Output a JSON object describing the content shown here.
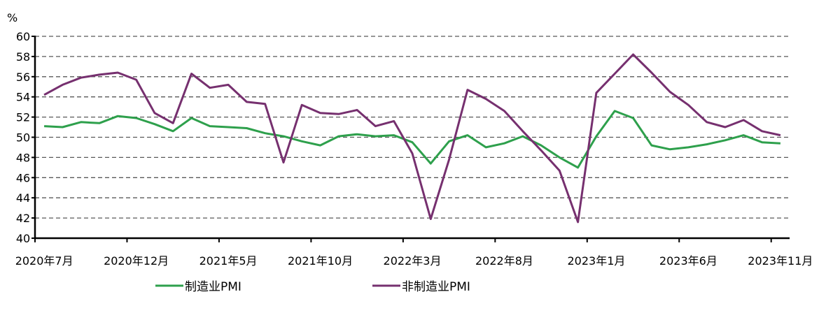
{
  "chart_data": {
    "type": "line",
    "title": "",
    "xlabel": "",
    "ylabel": "%",
    "ylim": [
      40,
      60
    ],
    "yticks": [
      40,
      42,
      44,
      46,
      48,
      50,
      52,
      54,
      56,
      58,
      60
    ],
    "grid": "horizontal dashed",
    "legend_position": "bottom",
    "x_tick_labels": [
      "2020年7月",
      "2020年12月",
      "2021年5月",
      "2021年10月",
      "2022年3月",
      "2022年8月",
      "2023年1月",
      "2023年6月",
      "2023年11月"
    ],
    "x": [
      "2020-07",
      "2020-08",
      "2020-09",
      "2020-10",
      "2020-11",
      "2020-12",
      "2021-01",
      "2021-02",
      "2021-03",
      "2021-04",
      "2021-05",
      "2021-06",
      "2021-07",
      "2021-08",
      "2021-09",
      "2021-10",
      "2021-11",
      "2021-12",
      "2022-01",
      "2022-02",
      "2022-03",
      "2022-04",
      "2022-05",
      "2022-06",
      "2022-07",
      "2022-08",
      "2022-09",
      "2022-10",
      "2022-11",
      "2022-12",
      "2023-01",
      "2023-02",
      "2023-03",
      "2023-04",
      "2023-05",
      "2023-06",
      "2023-07",
      "2023-08",
      "2023-09",
      "2023-10",
      "2023-11"
    ],
    "series": [
      {
        "name": "制造业PMI",
        "color": "#2ea04c",
        "values": [
          51.1,
          51.0,
          51.5,
          51.4,
          52.1,
          51.9,
          51.3,
          50.6,
          51.9,
          51.1,
          51.0,
          50.9,
          50.4,
          50.1,
          49.6,
          49.2,
          50.1,
          50.3,
          50.1,
          50.2,
          49.5,
          47.4,
          49.6,
          50.2,
          49.0,
          49.4,
          50.1,
          49.2,
          48.0,
          47.0,
          50.1,
          52.6,
          51.9,
          49.2,
          48.8,
          49.0,
          49.3,
          49.7,
          50.2,
          49.5,
          49.4
        ]
      },
      {
        "name": "非制造业PMI",
        "color": "#76306f",
        "values": [
          54.2,
          55.2,
          55.9,
          56.2,
          56.4,
          55.7,
          52.4,
          51.4,
          56.3,
          54.9,
          55.2,
          53.5,
          53.3,
          47.5,
          53.2,
          52.4,
          52.3,
          52.7,
          51.1,
          51.6,
          48.4,
          41.9,
          47.8,
          54.7,
          53.8,
          52.6,
          50.6,
          48.7,
          46.7,
          41.6,
          54.4,
          56.3,
          58.2,
          56.4,
          54.5,
          53.2,
          51.5,
          51.0,
          51.7,
          50.6,
          50.2
        ]
      }
    ]
  },
  "axis": {
    "unit_label": "%"
  },
  "legend": {
    "items": [
      {
        "label": "制造业PMI",
        "color": "#2ea04c"
      },
      {
        "label": "非制造业PMI",
        "color": "#76306f"
      }
    ]
  }
}
